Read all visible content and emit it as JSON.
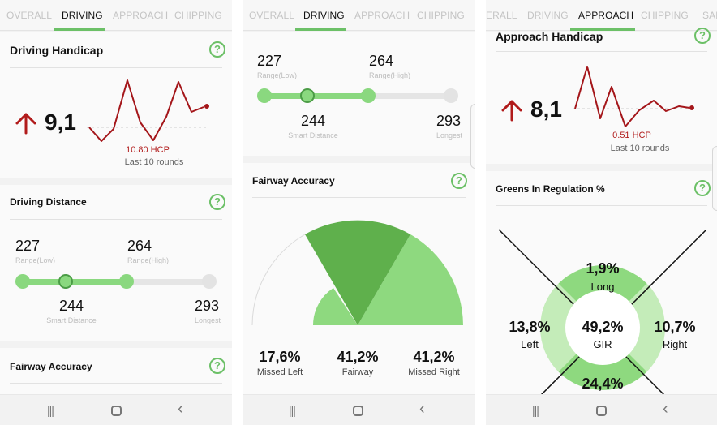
{
  "screen1": {
    "tabs": [
      "OVERALL",
      "DRIVING",
      "APPROACH",
      "CHIPPING"
    ],
    "active_tab": "DRIVING",
    "handicap_card": {
      "title": "Driving Handicap",
      "value": "9,1",
      "hcp": "10.80 HCP",
      "caption": "Last 10 rounds",
      "trend": "up"
    },
    "distance_card": {
      "title": "Driving Distance",
      "low_value": "227",
      "low_label": "Range(Low)",
      "high_value": "264",
      "high_label": "Range(High)",
      "smart_value": "244",
      "smart_label": "Smart Distance",
      "longest_value": "293",
      "longest_label": "Longest"
    },
    "fairway_card": {
      "title": "Fairway Accuracy"
    }
  },
  "screen2": {
    "tabs": [
      "OVERALL",
      "DRIVING",
      "APPROACH",
      "CHIPPING"
    ],
    "active_tab": "DRIVING",
    "distance_card": {
      "low_value": "227",
      "low_label": "Range(Low)",
      "high_value": "264",
      "high_label": "Range(High)",
      "smart_value": "244",
      "smart_label": "Smart Distance",
      "longest_value": "293",
      "longest_label": "Longest"
    },
    "fairway_card": {
      "title": "Fairway Accuracy",
      "missed_left_value": "17,6%",
      "missed_left_label": "Missed Left",
      "fairway_value": "41,2%",
      "fairway_label": "Fairway",
      "missed_right_value": "41,2%",
      "missed_right_label": "Missed Right",
      "missed_left_pct": 17.6,
      "fairway_pct": 41.2,
      "missed_right_pct": 41.2
    }
  },
  "screen3": {
    "tabs": [
      "ERALL",
      "DRIVING",
      "APPROACH",
      "CHIPPING",
      "SAN"
    ],
    "active_tab": "APPROACH",
    "handicap_card": {
      "title": "Approach Handicap",
      "value": "8,1",
      "hcp": "0.51 HCP",
      "caption": "Last 10 rounds",
      "trend": "up"
    },
    "gir_card": {
      "title": "Greens In Regulation %",
      "long_value": "1,9%",
      "long_label": "Long",
      "left_value": "13,8%",
      "left_label": "Left",
      "center_value": "49,2%",
      "center_label": "GIR",
      "right_value": "10,7%",
      "right_label": "Right",
      "short_value": "24,4%"
    }
  },
  "icons": {
    "help": "?",
    "trend_up": "↑",
    "nav_recent": "|||",
    "nav_back": "‹"
  },
  "colors": {
    "accent_green": "#6cc067",
    "light_green": "#8ad87f",
    "dark_green": "#5fb04c",
    "trend_red": "#b11b1b"
  }
}
